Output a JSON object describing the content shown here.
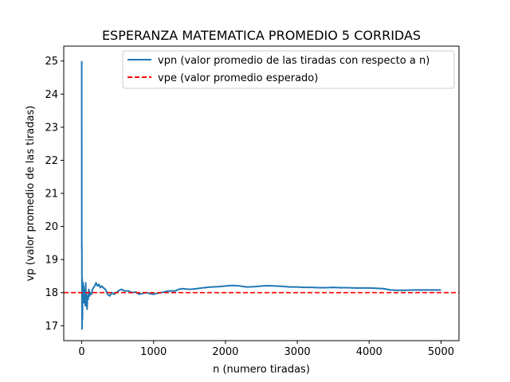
{
  "chart_data": {
    "type": "line",
    "title": "ESPERANZA MATEMATICA PROMEDIO 5 CORRIDAS",
    "xlabel": "n (numero tiradas)",
    "ylabel": "vp (valor promedio de las tiradas)",
    "xlim": [
      -250,
      5250
    ],
    "ylim": [
      16.55,
      25.45
    ],
    "xticks": [
      0,
      1000,
      2000,
      3000,
      4000,
      5000
    ],
    "yticks": [
      17,
      18,
      19,
      20,
      21,
      22,
      23,
      24,
      25
    ],
    "grid": false,
    "legend_position": "top-right",
    "series": [
      {
        "name": "vpn (valor promedio de las tiradas con respecto a n)",
        "color": "#1f77b4",
        "style": "solid",
        "x": [
          0,
          1,
          2,
          3,
          4,
          5,
          6,
          8,
          10,
          12,
          15,
          18,
          22,
          26,
          30,
          35,
          40,
          45,
          50,
          55,
          60,
          65,
          70,
          75,
          80,
          90,
          100,
          110,
          120,
          135,
          150,
          165,
          180,
          200,
          220,
          240,
          260,
          280,
          300,
          330,
          360,
          390,
          420,
          450,
          480,
          510,
          550,
          600,
          650,
          700,
          750,
          800,
          850,
          900,
          950,
          1000,
          1050,
          1100,
          1150,
          1200,
          1300,
          1350,
          1400,
          1500,
          1600,
          1700,
          1800,
          1900,
          2000,
          2100,
          2200,
          2300,
          2400,
          2500,
          2600,
          2700,
          2800,
          2900,
          3000,
          3100,
          3200,
          3300,
          3400,
          3500,
          3600,
          3700,
          3800,
          3900,
          4000,
          4100,
          4200,
          4300,
          4400,
          4500,
          4600,
          4700,
          4800,
          4900,
          5000
        ],
        "y": [
          25.0,
          19.3,
          19.5,
          18.3,
          17.3,
          16.9,
          17.6,
          18.4,
          17.2,
          18.3,
          17.8,
          18.3,
          17.9,
          18.2,
          17.7,
          18.1,
          17.8,
          18.0,
          17.6,
          18.3,
          17.9,
          18.0,
          17.7,
          17.5,
          17.9,
          17.8,
          18.1,
          17.9,
          18.0,
          17.95,
          18.1,
          18.15,
          18.2,
          18.3,
          18.2,
          18.25,
          18.15,
          18.2,
          18.15,
          18.1,
          17.95,
          17.9,
          18.0,
          17.95,
          18.0,
          18.05,
          18.1,
          18.05,
          18.05,
          18.0,
          18.02,
          17.95,
          17.98,
          18.0,
          17.97,
          17.95,
          17.98,
          18.0,
          18.02,
          18.05,
          18.05,
          18.1,
          18.12,
          18.1,
          18.12,
          18.15,
          18.17,
          18.18,
          18.2,
          18.22,
          18.2,
          18.17,
          18.18,
          18.2,
          18.21,
          18.2,
          18.19,
          18.17,
          18.17,
          18.16,
          18.16,
          18.15,
          18.15,
          18.16,
          18.15,
          18.15,
          18.14,
          18.14,
          18.14,
          18.13,
          18.12,
          18.08,
          18.07,
          18.07,
          18.08,
          18.08,
          18.08,
          18.08,
          18.08
        ]
      },
      {
        "name": "vpe (valor promedio esperado)",
        "color": "#ff0000",
        "style": "dashed",
        "y_constant": 18
      }
    ]
  }
}
